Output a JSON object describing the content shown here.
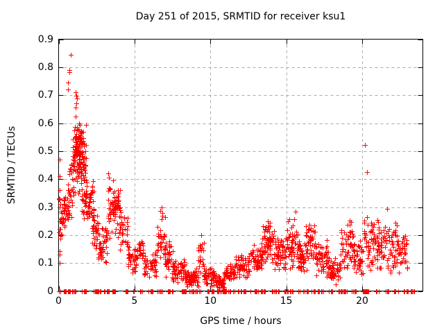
{
  "chart_data": {
    "type": "scatter",
    "title": "Day 251 of 2015, SRMTID for receiver ksu1",
    "xlabel": "GPS time / hours",
    "ylabel": "SRMTID / TECUs",
    "series_name": "SRMTID",
    "marker": {
      "shape": "plus",
      "color": "#ff0000",
      "size": 7
    },
    "grid": {
      "show": true,
      "color": "#a8a8a8",
      "style": "dashed"
    },
    "frame_color": "#000000",
    "background_color": "#ffffff",
    "text_color": "#000000",
    "xlim": [
      0,
      24
    ],
    "ylim": [
      0,
      0.9
    ],
    "xticks": [
      {
        "v": 0,
        "label": "0"
      },
      {
        "v": 5,
        "label": "5"
      },
      {
        "v": 10,
        "label": "10"
      },
      {
        "v": 15,
        "label": "15"
      },
      {
        "v": 20,
        "label": "20"
      }
    ],
    "yticks": [
      {
        "v": 0,
        "label": "0"
      },
      {
        "v": 0.1,
        "label": "0.1"
      },
      {
        "v": 0.2,
        "label": "0.2"
      },
      {
        "v": 0.3,
        "label": "0.3"
      },
      {
        "v": 0.4,
        "label": "0.4"
      },
      {
        "v": 0.5,
        "label": "0.5"
      },
      {
        "v": 0.6,
        "label": "0.6"
      },
      {
        "v": 0.7,
        "label": "0.7"
      },
      {
        "v": 0.8,
        "label": "0.8"
      },
      {
        "v": 0.9,
        "label": "0.9"
      }
    ],
    "seed": 42,
    "outlier_points": [
      [
        0.82,
        0.845
      ],
      [
        0.7,
        0.79
      ],
      [
        0.73,
        0.782
      ],
      [
        0.6,
        0.746
      ],
      [
        0.63,
        0.72
      ],
      [
        1.12,
        0.71
      ],
      [
        1.16,
        0.697
      ],
      [
        1.2,
        0.688
      ],
      [
        1.18,
        0.67
      ],
      [
        1.13,
        0.656
      ],
      [
        1.14,
        0.624
      ],
      [
        1.35,
        0.6
      ],
      [
        0.05,
        0.47
      ],
      [
        0.06,
        0.41
      ],
      [
        0.04,
        0.33
      ],
      [
        0.05,
        0.25
      ],
      [
        0.05,
        0.13
      ],
      [
        0.06,
        0.1
      ],
      [
        3.28,
        0.42
      ],
      [
        3.33,
        0.405
      ],
      [
        6.78,
        0.3
      ],
      [
        6.85,
        0.27
      ],
      [
        9.4,
        0.2
      ],
      [
        15.62,
        0.285
      ],
      [
        20.2,
        0.521
      ],
      [
        20.32,
        0.424
      ],
      [
        21.65,
        0.295
      ]
    ],
    "dense_bands": [
      [
        0.02,
        0.12,
        0.1,
        0.45,
        10
      ],
      [
        0.1,
        0.45,
        0.17,
        0.34,
        22
      ],
      [
        0.35,
        0.7,
        0.2,
        0.38,
        20
      ],
      [
        0.55,
        0.95,
        0.25,
        0.47,
        28
      ],
      [
        0.9,
        1.8,
        0.33,
        0.6,
        110
      ],
      [
        1.05,
        1.55,
        0.44,
        0.615,
        55
      ],
      [
        1.5,
        1.85,
        0.24,
        0.44,
        28
      ],
      [
        1.8,
        2.3,
        0.22,
        0.42,
        40
      ],
      [
        2.2,
        2.65,
        0.12,
        0.3,
        35
      ],
      [
        2.6,
        3.2,
        0.08,
        0.24,
        45
      ],
      [
        3.2,
        4.1,
        0.18,
        0.41,
        55
      ],
      [
        3.45,
        3.95,
        0.27,
        0.36,
        25
      ],
      [
        4.0,
        4.55,
        0.13,
        0.32,
        30
      ],
      [
        4.5,
        5.2,
        0.05,
        0.19,
        40
      ],
      [
        5.15,
        5.6,
        0.09,
        0.21,
        20
      ],
      [
        5.55,
        6.45,
        0.04,
        0.15,
        45
      ],
      [
        6.4,
        7.05,
        0.09,
        0.29,
        32
      ],
      [
        7.0,
        7.55,
        0.04,
        0.19,
        40
      ],
      [
        7.5,
        8.35,
        0.02,
        0.12,
        55
      ],
      [
        8.3,
        9.2,
        0.012,
        0.085,
        70
      ],
      [
        9.2,
        9.6,
        0.03,
        0.2,
        22
      ],
      [
        9.55,
        10.4,
        0.015,
        0.09,
        60
      ],
      [
        10.4,
        10.95,
        0.002,
        0.055,
        32
      ],
      [
        10.9,
        11.65,
        0.02,
        0.1,
        45
      ],
      [
        11.6,
        12.6,
        0.04,
        0.14,
        60
      ],
      [
        12.6,
        13.4,
        0.06,
        0.17,
        55
      ],
      [
        13.35,
        14.2,
        0.09,
        0.26,
        70
      ],
      [
        14.2,
        15.0,
        0.05,
        0.2,
        55
      ],
      [
        15.0,
        15.85,
        0.07,
        0.27,
        60
      ],
      [
        15.8,
        16.35,
        0.05,
        0.18,
        40
      ],
      [
        16.3,
        16.9,
        0.09,
        0.26,
        45
      ],
      [
        16.9,
        17.8,
        0.04,
        0.19,
        55
      ],
      [
        17.8,
        18.6,
        0.02,
        0.12,
        50
      ],
      [
        18.6,
        19.4,
        0.07,
        0.26,
        55
      ],
      [
        19.4,
        20.1,
        0.05,
        0.2,
        45
      ],
      [
        20.1,
        21.0,
        0.05,
        0.27,
        55
      ],
      [
        21.0,
        22.3,
        0.05,
        0.26,
        85
      ],
      [
        22.3,
        23.0,
        0.06,
        0.21,
        40
      ]
    ],
    "zero_runs": [
      [
        0.02,
        0.1,
        4
      ],
      [
        0.3,
        0.5,
        8
      ],
      [
        0.55,
        0.8,
        12
      ],
      [
        0.9,
        1.15,
        8
      ],
      [
        1.5,
        1.85,
        10
      ],
      [
        2.3,
        2.75,
        16
      ],
      [
        2.9,
        3.35,
        12
      ],
      [
        3.5,
        3.75,
        8
      ],
      [
        4.4,
        4.65,
        8
      ],
      [
        4.85,
        5.0,
        4
      ],
      [
        5.35,
        5.6,
        6
      ],
      [
        5.9,
        6.25,
        8
      ],
      [
        6.5,
        6.95,
        10
      ],
      [
        7.2,
        7.65,
        14
      ],
      [
        7.9,
        8.45,
        12
      ],
      [
        8.6,
        9.45,
        16
      ],
      [
        9.6,
        10.25,
        12
      ],
      [
        10.4,
        11.35,
        20
      ],
      [
        11.5,
        12.35,
        14
      ],
      [
        12.6,
        13.15,
        10
      ],
      [
        13.3,
        13.65,
        8
      ],
      [
        14.0,
        14.55,
        10
      ],
      [
        14.8,
        15.45,
        12
      ],
      [
        15.7,
        16.45,
        12
      ],
      [
        16.6,
        17.45,
        14
      ],
      [
        17.7,
        18.05,
        6
      ],
      [
        18.3,
        19.05,
        12
      ],
      [
        19.3,
        19.65,
        6
      ],
      [
        20.05,
        20.45,
        14
      ],
      [
        20.9,
        21.15,
        5
      ],
      [
        21.5,
        21.75,
        5
      ],
      [
        22.1,
        22.45,
        7
      ],
      [
        22.7,
        23.0,
        6
      ],
      [
        23.15,
        23.45,
        6
      ]
    ]
  }
}
